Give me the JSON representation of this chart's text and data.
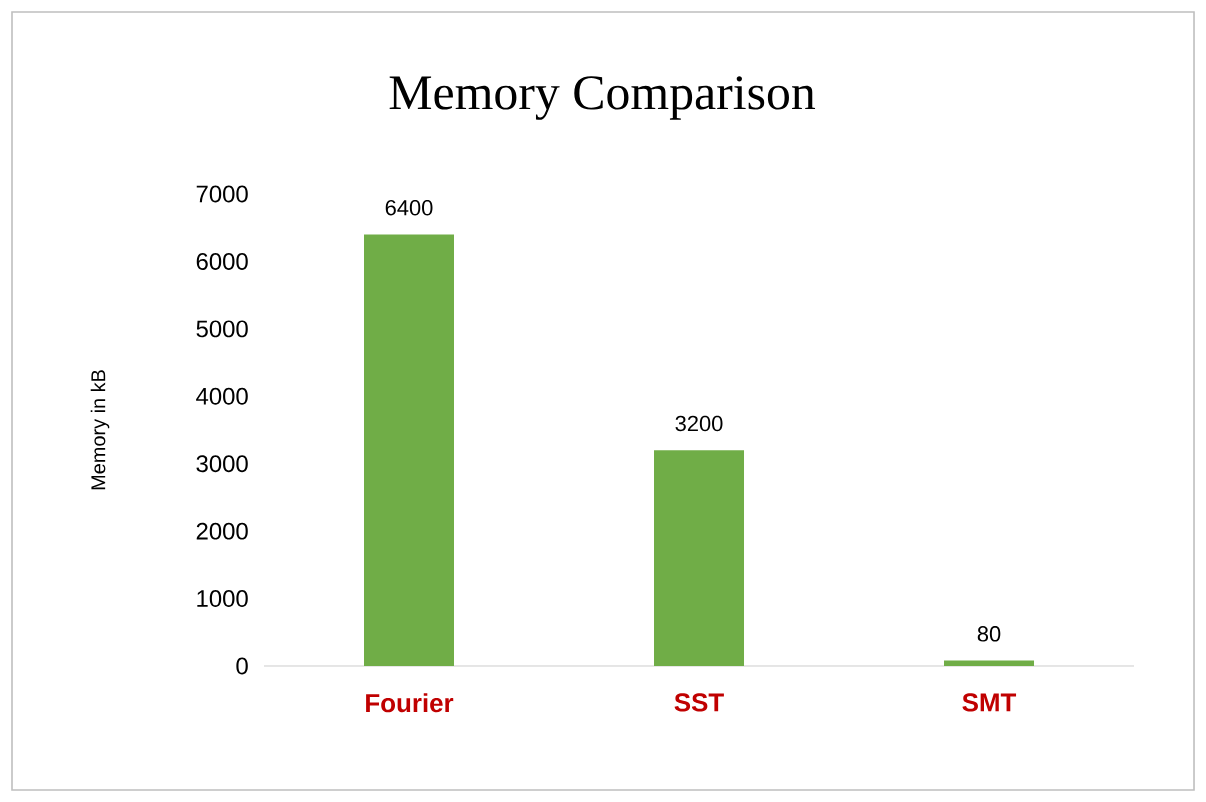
{
  "chart_data": {
    "type": "bar",
    "title": "Memory Comparison",
    "ylabel": "Memory in kB",
    "categories": [
      "Fourier",
      "SST",
      "SMT"
    ],
    "values": [
      6400,
      3200,
      80
    ],
    "color": "#70ad47",
    "ylim": [
      0,
      7000
    ],
    "yticks": [
      0,
      1000,
      2000,
      3000,
      4000,
      5000,
      6000,
      7000
    ],
    "data_labels": true
  }
}
